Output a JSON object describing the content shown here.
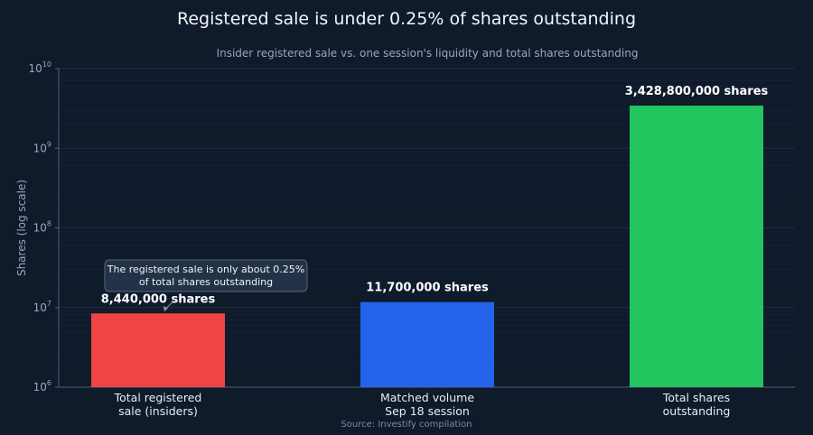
{
  "chart_data": {
    "type": "bar",
    "title": "Registered sale is under 0.25% of shares outstanding",
    "subtitle": "Insider registered sale vs. one session's liquidity and total shares outstanding",
    "ylabel": "Shares (log scale)",
    "xlabel": "",
    "yscale": "log",
    "ylim": [
      1000000,
      10000000000
    ],
    "yticks": [
      {
        "base": "10",
        "exp": "6",
        "value": 1000000
      },
      {
        "base": "10",
        "exp": "7",
        "value": 10000000
      },
      {
        "base": "10",
        "exp": "8",
        "value": 100000000
      },
      {
        "base": "10",
        "exp": "9",
        "value": 1000000000
      },
      {
        "base": "10",
        "exp": "10",
        "value": 10000000000
      }
    ],
    "categories": [
      [
        "Total registered",
        "sale (insiders)"
      ],
      [
        "Matched volume",
        "Sep 18 session"
      ],
      [
        "Total shares",
        "outstanding"
      ]
    ],
    "values": [
      8440000,
      11700000,
      3428800000
    ],
    "value_labels": [
      "8,440,000 shares",
      "11,700,000 shares",
      "3,428,800,000 shares"
    ],
    "colors": [
      "#ef4444",
      "#2563eb",
      "#22c55e"
    ],
    "annotation": {
      "lines": [
        "The registered sale is only about 0.25%",
        "of total shares outstanding"
      ],
      "target_index": 0
    },
    "source": "Source: Investify compilation",
    "grid": true
  }
}
